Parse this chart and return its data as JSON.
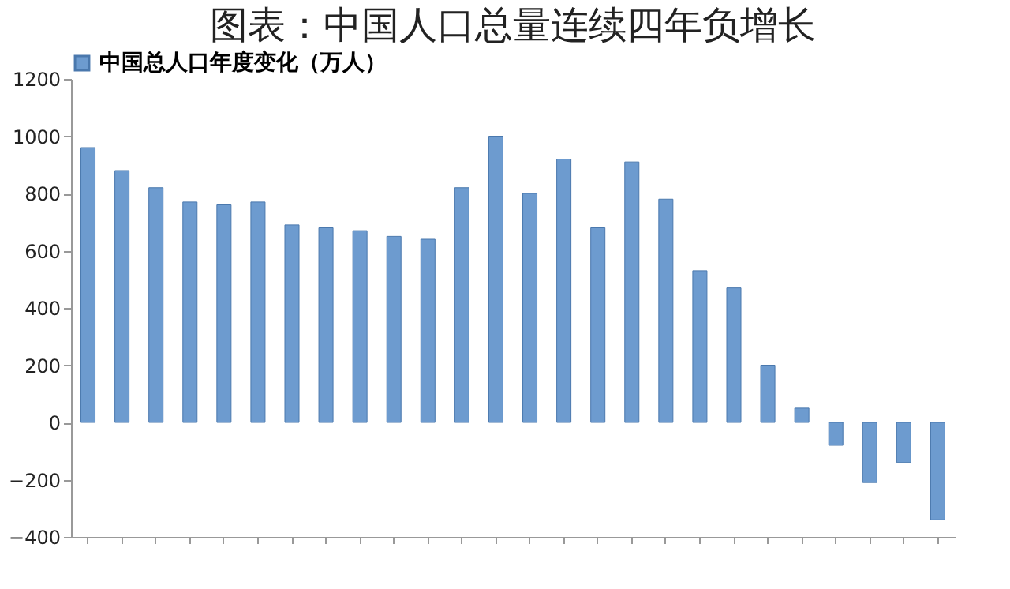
{
  "chart_data": {
    "type": "bar",
    "title": "图表：中国人口总量连续四年负增长",
    "categories": [
      null,
      null,
      null,
      null,
      null,
      null,
      null,
      null,
      null,
      null,
      null,
      null,
      null,
      null,
      null,
      null,
      null,
      null,
      null,
      null,
      null,
      null,
      null,
      null,
      null,
      null
    ],
    "series": [
      {
        "name": "中国总人口年度变化（万人）",
        "color": "#6d9bcf",
        "values": [
          960,
          880,
          820,
          770,
          760,
          770,
          690,
          680,
          670,
          650,
          640,
          820,
          1000,
          800,
          920,
          680,
          910,
          780,
          530,
          470,
          200,
          50,
          -80,
          -210,
          -140,
          -340
        ]
      }
    ],
    "ylim": [
      -400,
      1200
    ],
    "yticks": [
      -400,
      -200,
      0,
      200,
      400,
      600,
      800,
      1000,
      1200
    ],
    "grid": false,
    "legend": "top"
  }
}
